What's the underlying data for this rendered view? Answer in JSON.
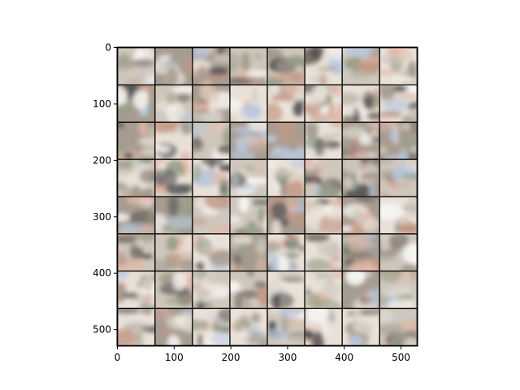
{
  "chart_data": {
    "type": "heatmap",
    "title": "",
    "xlabel": "",
    "ylabel": "",
    "xlim": [
      0,
      530
    ],
    "ylim": [
      530,
      0
    ],
    "x_ticks": [
      0,
      100,
      200,
      300,
      400,
      500
    ],
    "y_ticks": [
      0,
      100,
      200,
      300,
      400,
      500
    ],
    "x_tick_labels": [
      "0",
      "100",
      "200",
      "300",
      "400",
      "500"
    ],
    "y_tick_labels": [
      "0",
      "100",
      "200",
      "300",
      "400",
      "500"
    ],
    "grid": {
      "rows": 8,
      "cols": 8,
      "tile_size": 64,
      "separator": 2,
      "separator_color": "#000000",
      "description": "8x8 grid of generated image samples (GAN output)"
    },
    "palette": [
      "#e9e1d8",
      "#cfc7bb",
      "#a79c90",
      "#7a7068",
      "#4c4a4e",
      "#e2b8a8",
      "#c49886",
      "#b9c7dc",
      "#f7f5f2",
      "#98a08a"
    ]
  }
}
